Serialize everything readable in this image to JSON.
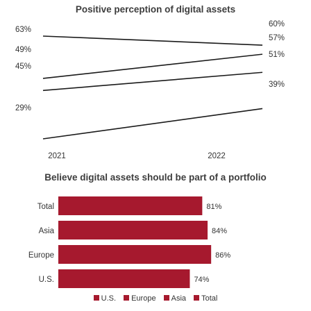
{
  "chart_data": [
    {
      "type": "line",
      "title": "Positive perception of digital assets",
      "categories": [
        "2021",
        "2022"
      ],
      "value_suffix": "%",
      "series": [
        {
          "name": "U.S.",
          "values": [
            63,
            60
          ]
        },
        {
          "name": "Europe",
          "values": [
            49,
            57
          ]
        },
        {
          "name": "Asia",
          "values": [
            45,
            51
          ]
        },
        {
          "name": "Total",
          "values": [
            29,
            39
          ]
        }
      ],
      "left_labels": [
        "63%",
        "49%",
        "45%",
        "29%"
      ],
      "right_labels": [
        "60%",
        "57%",
        "51%",
        "39%"
      ]
    },
    {
      "type": "bar",
      "orientation": "horizontal",
      "title": "Believe digital assets should be part of a portfolio",
      "categories": [
        "Total",
        "Asia",
        "Europe",
        "U.S."
      ],
      "values": [
        81,
        84,
        86,
        74
      ],
      "value_labels": [
        "81%",
        "84%",
        "86%",
        "74%"
      ],
      "colors": [
        "#a6192e",
        "#a6192e",
        "#a6192e",
        "#a6192e"
      ]
    }
  ],
  "legend": [
    {
      "label": "U.S.",
      "color": "#a6192e"
    },
    {
      "label": "Europe",
      "color": "#a6192e"
    },
    {
      "label": "Asia",
      "color": "#a6192e"
    },
    {
      "label": "Total",
      "color": "#a6192e"
    }
  ],
  "colors": {
    "line": "#1a1a1a",
    "bar": "#a6192e"
  }
}
